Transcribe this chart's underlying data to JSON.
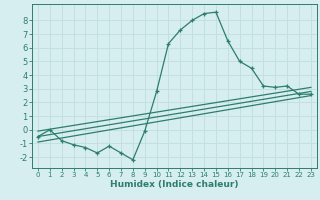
{
  "title": "",
  "xlabel": "Humidex (Indice chaleur)",
  "bg_color": "#d6eef0",
  "grid_color": "#c4dfe0",
  "line_color": "#2e7d6e",
  "xlim": [
    -0.5,
    23.5
  ],
  "ylim": [
    -2.8,
    9.2
  ],
  "xticks": [
    0,
    1,
    2,
    3,
    4,
    5,
    6,
    7,
    8,
    9,
    10,
    11,
    12,
    13,
    14,
    15,
    16,
    17,
    18,
    19,
    20,
    21,
    22,
    23
  ],
  "yticks": [
    -2,
    -1,
    0,
    1,
    2,
    3,
    4,
    5,
    6,
    7,
    8
  ],
  "curve_x": [
    0,
    1,
    2,
    3,
    4,
    5,
    6,
    7,
    8,
    9,
    10,
    11,
    12,
    13,
    14,
    15,
    16,
    17,
    18,
    19,
    20,
    21,
    22,
    23
  ],
  "curve_y": [
    -0.5,
    0.0,
    -0.8,
    -1.1,
    -1.3,
    -1.7,
    -1.2,
    -1.7,
    -2.2,
    -0.1,
    2.8,
    6.3,
    7.3,
    8.0,
    8.5,
    8.6,
    6.5,
    5.0,
    4.5,
    3.2,
    3.1,
    3.2,
    2.6,
    2.6
  ],
  "line1_x": [
    0,
    23
  ],
  "line1_y": [
    -0.9,
    2.5
  ],
  "line2_x": [
    0,
    23
  ],
  "line2_y": [
    -0.5,
    2.8
  ],
  "line3_x": [
    0,
    23
  ],
  "line3_y": [
    -0.1,
    3.1
  ]
}
